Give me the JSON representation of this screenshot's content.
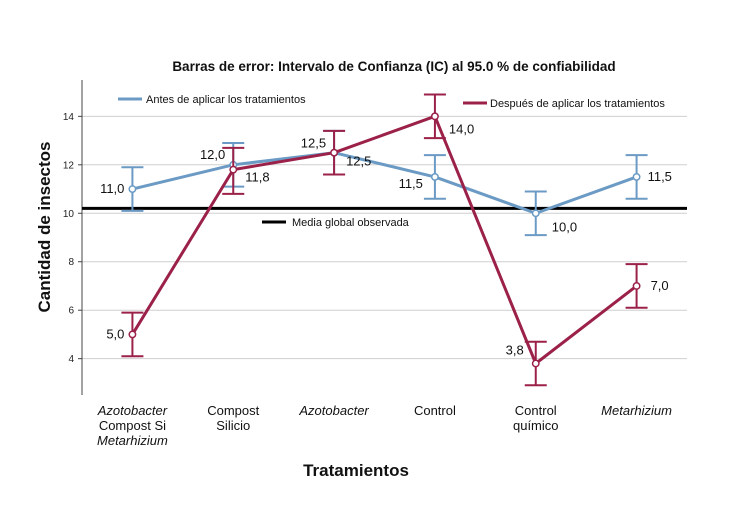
{
  "chart_data": {
    "type": "line",
    "title": "Barras de error: Intervalo de Confianza (IC) al 95.0 % de confiabilidad",
    "xlabel": "Tratamientos",
    "ylabel": "Cantidad de insectos",
    "ylim": [
      2.5,
      15.5
    ],
    "yticks": [
      "4",
      "6",
      "8",
      "10",
      "12",
      "14"
    ],
    "grid": "horizontal",
    "categories": [
      {
        "lines": [
          "Azotobacter",
          "Compost Si",
          "Metarhizium"
        ],
        "italic": [
          true,
          false,
          true
        ]
      },
      {
        "lines": [
          "Compost",
          "Silicio"
        ],
        "italic": [
          false,
          false
        ]
      },
      {
        "lines": [
          "Azotobacter"
        ],
        "italic": [
          true
        ]
      },
      {
        "lines": [
          "Control"
        ],
        "italic": [
          false
        ]
      },
      {
        "lines": [
          "Control",
          "químico"
        ],
        "italic": [
          false,
          false
        ]
      },
      {
        "lines": [
          "Metarhizium"
        ],
        "italic": [
          true
        ]
      }
    ],
    "series": [
      {
        "name": "Antes de aplicar los tratamientos",
        "color": "#6b9ac4",
        "values": [
          11.0,
          12.0,
          12.5,
          11.5,
          10.0,
          11.5
        ],
        "labels": [
          "11,0",
          "12,0",
          "12,5",
          "11,5",
          "10,0",
          "11,5"
        ],
        "ci_low": [
          10.1,
          11.1,
          11.6,
          10.6,
          9.1,
          10.6
        ],
        "ci_high": [
          11.9,
          12.9,
          13.4,
          12.4,
          10.9,
          12.4
        ]
      },
      {
        "name": "Después de aplicar los tratamientos",
        "color": "#9b2148",
        "values": [
          5.0,
          11.8,
          12.5,
          14.0,
          3.8,
          7.0
        ],
        "labels": [
          "5,0",
          "11,8",
          "12,5",
          "14,0",
          "3,8",
          "7,0"
        ],
        "ci_low": [
          4.1,
          10.8,
          11.6,
          13.1,
          2.9,
          6.1
        ],
        "ci_high": [
          5.9,
          12.7,
          13.4,
          14.9,
          4.7,
          7.9
        ]
      }
    ],
    "reference_line": {
      "name": "Media global observada",
      "value": 10.2,
      "color": "#000000"
    },
    "legend": "top"
  }
}
